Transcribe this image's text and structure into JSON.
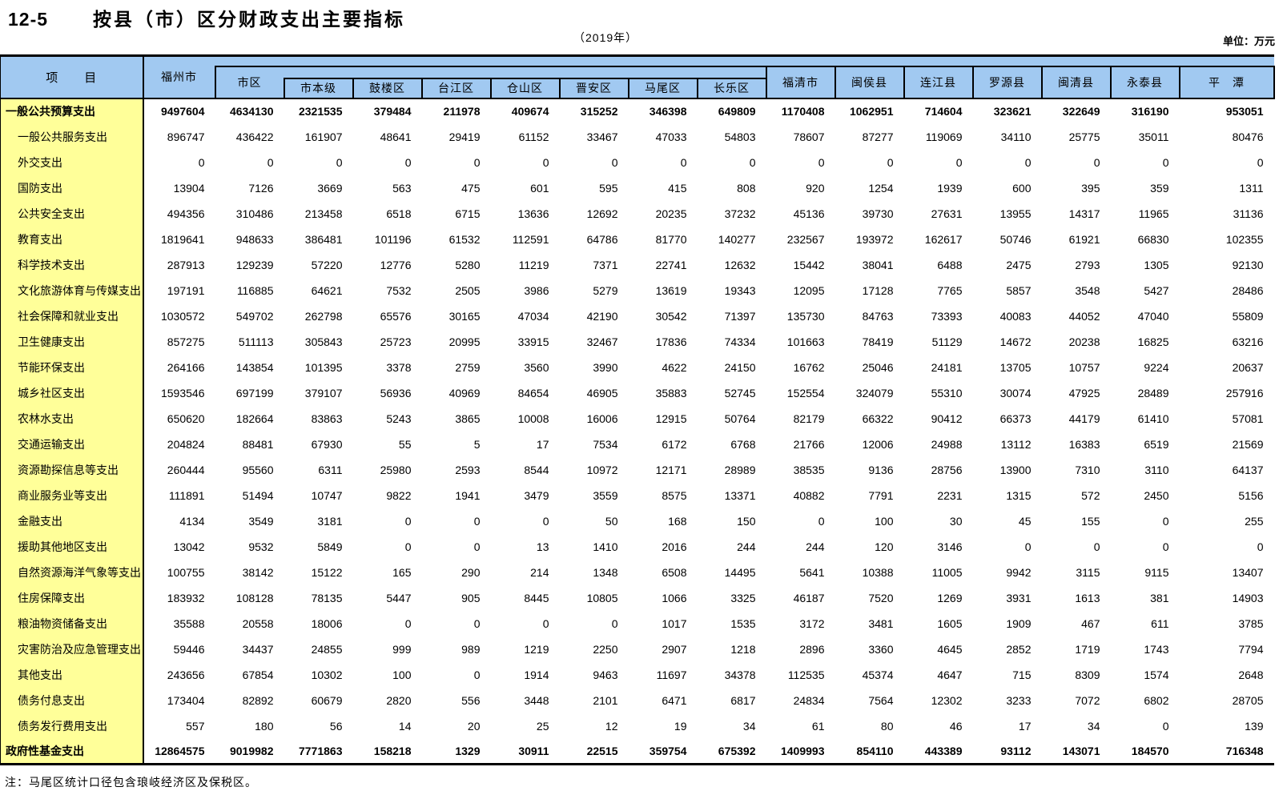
{
  "page": {
    "table_number": "12-5",
    "title": "按县（市）区分财政支出主要指标",
    "subtitle": "（2019年）",
    "unit": "单位：万元",
    "note": "注：马尾区统计口径包含琅岐经济区及保税区。"
  },
  "colors": {
    "header_bg": "#A1C9F1",
    "label_bg": "#FFFF99"
  },
  "table": {
    "item_header": "项　　目",
    "top_columns": {
      "fuzhou": "福州市",
      "shiqu": "市区"
    },
    "shiqu_children": [
      "市本级",
      "鼓楼区",
      "台江区",
      "仓山区",
      "晋安区",
      "马尾区",
      "长乐区"
    ],
    "county_columns": [
      "福清市",
      "闽侯县",
      "连江县",
      "罗源县",
      "闽清县",
      "永泰县",
      "平　潭"
    ],
    "rows": [
      {
        "label": "一般公共预算支出",
        "bold": true,
        "indent": false,
        "values": [
          9497604,
          4634130,
          2321535,
          379484,
          211978,
          409674,
          315252,
          346398,
          649809,
          1170408,
          1062951,
          714604,
          323621,
          322649,
          316190,
          953051
        ]
      },
      {
        "label": "一般公共服务支出",
        "bold": false,
        "indent": true,
        "values": [
          896747,
          436422,
          161907,
          48641,
          29419,
          61152,
          33467,
          47033,
          54803,
          78607,
          87277,
          119069,
          34110,
          25775,
          35011,
          80476
        ]
      },
      {
        "label": "外交支出",
        "bold": false,
        "indent": true,
        "values": [
          0,
          0,
          0,
          0,
          0,
          0,
          0,
          0,
          0,
          0,
          0,
          0,
          0,
          0,
          0,
          0
        ]
      },
      {
        "label": "国防支出",
        "bold": false,
        "indent": true,
        "values": [
          13904,
          7126,
          3669,
          563,
          475,
          601,
          595,
          415,
          808,
          920,
          1254,
          1939,
          600,
          395,
          359,
          1311
        ]
      },
      {
        "label": "公共安全支出",
        "bold": false,
        "indent": true,
        "values": [
          494356,
          310486,
          213458,
          6518,
          6715,
          13636,
          12692,
          20235,
          37232,
          45136,
          39730,
          27631,
          13955,
          14317,
          11965,
          31136
        ]
      },
      {
        "label": "教育支出",
        "bold": false,
        "indent": true,
        "values": [
          1819641,
          948633,
          386481,
          101196,
          61532,
          112591,
          64786,
          81770,
          140277,
          232567,
          193972,
          162617,
          50746,
          61921,
          66830,
          102355
        ]
      },
      {
        "label": "科学技术支出",
        "bold": false,
        "indent": true,
        "values": [
          287913,
          129239,
          57220,
          12776,
          5280,
          11219,
          7371,
          22741,
          12632,
          15442,
          38041,
          6488,
          2475,
          2793,
          1305,
          92130
        ]
      },
      {
        "label": "文化旅游体育与传媒支出",
        "bold": false,
        "indent": true,
        "values": [
          197191,
          116885,
          64621,
          7532,
          2505,
          3986,
          5279,
          13619,
          19343,
          12095,
          17128,
          7765,
          5857,
          3548,
          5427,
          28486
        ]
      },
      {
        "label": "社会保障和就业支出",
        "bold": false,
        "indent": true,
        "values": [
          1030572,
          549702,
          262798,
          65576,
          30165,
          47034,
          42190,
          30542,
          71397,
          135730,
          84763,
          73393,
          40083,
          44052,
          47040,
          55809
        ]
      },
      {
        "label": "卫生健康支出",
        "bold": false,
        "indent": true,
        "values": [
          857275,
          511113,
          305843,
          25723,
          20995,
          33915,
          32467,
          17836,
          74334,
          101663,
          78419,
          51129,
          14672,
          20238,
          16825,
          63216
        ]
      },
      {
        "label": "节能环保支出",
        "bold": false,
        "indent": true,
        "values": [
          264166,
          143854,
          101395,
          3378,
          2759,
          3560,
          3990,
          4622,
          24150,
          16762,
          25046,
          24181,
          13705,
          10757,
          9224,
          20637
        ]
      },
      {
        "label": "城乡社区支出",
        "bold": false,
        "indent": true,
        "values": [
          1593546,
          697199,
          379107,
          56936,
          40969,
          84654,
          46905,
          35883,
          52745,
          152554,
          324079,
          55310,
          30074,
          47925,
          28489,
          257916
        ]
      },
      {
        "label": "农林水支出",
        "bold": false,
        "indent": true,
        "values": [
          650620,
          182664,
          83863,
          5243,
          3865,
          10008,
          16006,
          12915,
          50764,
          82179,
          66322,
          90412,
          66373,
          44179,
          61410,
          57081
        ]
      },
      {
        "label": "交通运输支出",
        "bold": false,
        "indent": true,
        "values": [
          204824,
          88481,
          67930,
          55,
          5,
          17,
          7534,
          6172,
          6768,
          21766,
          12006,
          24988,
          13112,
          16383,
          6519,
          21569
        ]
      },
      {
        "label": "资源勘探信息等支出",
        "bold": false,
        "indent": true,
        "values": [
          260444,
          95560,
          6311,
          25980,
          2593,
          8544,
          10972,
          12171,
          28989,
          38535,
          9136,
          28756,
          13900,
          7310,
          3110,
          64137
        ]
      },
      {
        "label": "商业服务业等支出",
        "bold": false,
        "indent": true,
        "values": [
          111891,
          51494,
          10747,
          9822,
          1941,
          3479,
          3559,
          8575,
          13371,
          40882,
          7791,
          2231,
          1315,
          572,
          2450,
          5156
        ]
      },
      {
        "label": "金融支出",
        "bold": false,
        "indent": true,
        "values": [
          4134,
          3549,
          3181,
          0,
          0,
          0,
          50,
          168,
          150,
          0,
          100,
          30,
          45,
          155,
          0,
          255
        ]
      },
      {
        "label": "援助其他地区支出",
        "bold": false,
        "indent": true,
        "values": [
          13042,
          9532,
          5849,
          0,
          0,
          13,
          1410,
          2016,
          244,
          244,
          120,
          3146,
          0,
          0,
          0,
          0
        ]
      },
      {
        "label": "自然资源海洋气象等支出",
        "bold": false,
        "indent": true,
        "values": [
          100755,
          38142,
          15122,
          165,
          290,
          214,
          1348,
          6508,
          14495,
          5641,
          10388,
          11005,
          9942,
          3115,
          9115,
          13407
        ]
      },
      {
        "label": "住房保障支出",
        "bold": false,
        "indent": true,
        "values": [
          183932,
          108128,
          78135,
          5447,
          905,
          8445,
          10805,
          1066,
          3325,
          46187,
          7520,
          1269,
          3931,
          1613,
          381,
          14903
        ]
      },
      {
        "label": "粮油物资储备支出",
        "bold": false,
        "indent": true,
        "values": [
          35588,
          20558,
          18006,
          0,
          0,
          0,
          0,
          1017,
          1535,
          3172,
          3481,
          1605,
          1909,
          467,
          611,
          3785
        ]
      },
      {
        "label": "灾害防治及应急管理支出",
        "bold": false,
        "indent": true,
        "values": [
          59446,
          34437,
          24855,
          999,
          989,
          1219,
          2250,
          2907,
          1218,
          2896,
          3360,
          4645,
          2852,
          1719,
          1743,
          7794
        ]
      },
      {
        "label": "其他支出",
        "bold": false,
        "indent": true,
        "values": [
          243656,
          67854,
          10302,
          100,
          0,
          1914,
          9463,
          11697,
          34378,
          112535,
          45374,
          4647,
          715,
          8309,
          1574,
          2648
        ]
      },
      {
        "label": "债务付息支出",
        "bold": false,
        "indent": true,
        "values": [
          173404,
          82892,
          60679,
          2820,
          556,
          3448,
          2101,
          6471,
          6817,
          24834,
          7564,
          12302,
          3233,
          7072,
          6802,
          28705
        ]
      },
      {
        "label": "债务发行费用支出",
        "bold": false,
        "indent": true,
        "values": [
          557,
          180,
          56,
          14,
          20,
          25,
          12,
          19,
          34,
          61,
          80,
          46,
          17,
          34,
          0,
          139
        ]
      },
      {
        "label": "政府性基金支出",
        "bold": true,
        "indent": false,
        "values": [
          12864575,
          9019982,
          7771863,
          158218,
          1329,
          30911,
          22515,
          359754,
          675392,
          1409993,
          854110,
          443389,
          93112,
          143071,
          184570,
          716348
        ]
      }
    ]
  }
}
